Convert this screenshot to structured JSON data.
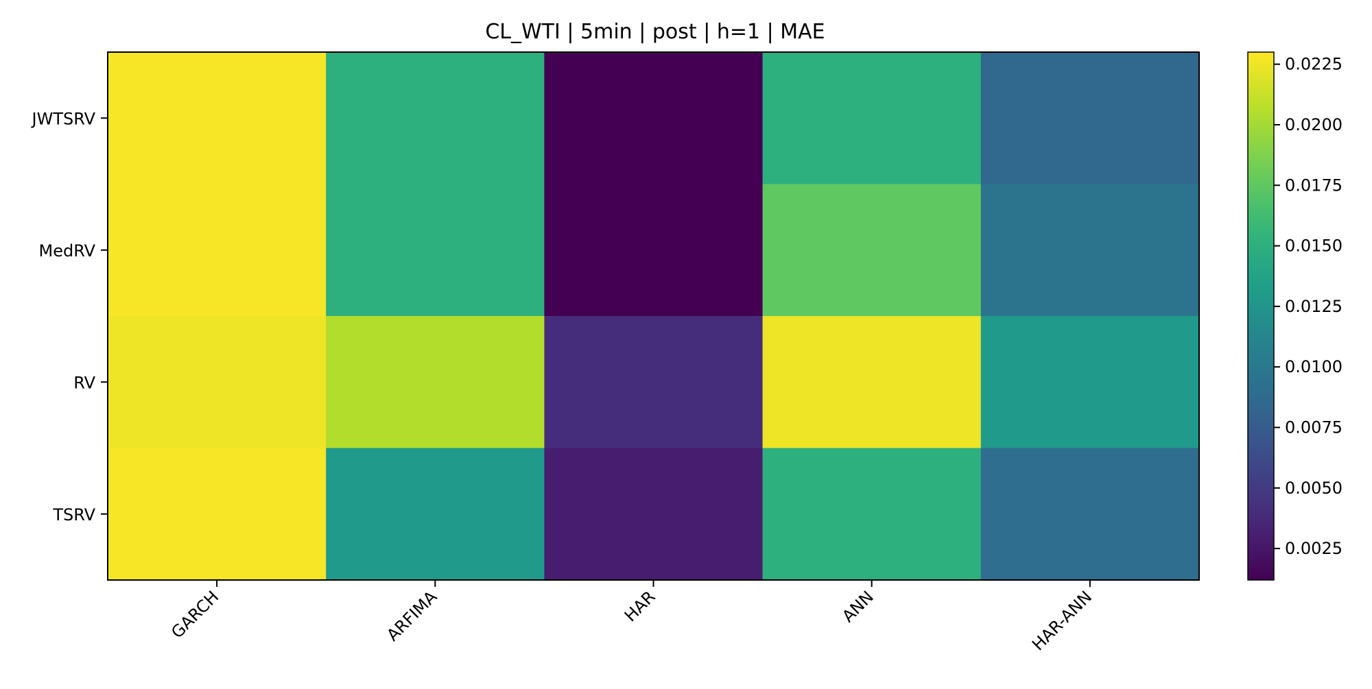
{
  "chart_data": {
    "type": "heatmap",
    "title": "CL_WTI | 5min | post | h=1 | MAE",
    "x_categories": [
      "GARCH",
      "ARFIMA",
      "HAR",
      "ANN",
      "HAR-ANN"
    ],
    "y_categories": [
      "JWTSRV",
      "MedRV",
      "RV",
      "TSRV"
    ],
    "values": [
      [
        0.0228,
        0.015,
        0.0012,
        0.015,
        0.0085
      ],
      [
        0.0228,
        0.015,
        0.0012,
        0.0175,
        0.0095
      ],
      [
        0.0225,
        0.0205,
        0.004,
        0.0225,
        0.013
      ],
      [
        0.0228,
        0.013,
        0.003,
        0.015,
        0.009
      ]
    ],
    "colormap": "viridis",
    "vmin": 0.0012,
    "vmax": 0.023,
    "colorbar": {
      "ticks": [
        0.0025,
        0.005,
        0.0075,
        0.01,
        0.0125,
        0.015,
        0.0175,
        0.02,
        0.0225
      ],
      "tick_labels": [
        "0.0025",
        "0.0050",
        "0.0075",
        "0.0100",
        "0.0125",
        "0.0150",
        "0.0175",
        "0.0200",
        "0.0225"
      ]
    }
  }
}
